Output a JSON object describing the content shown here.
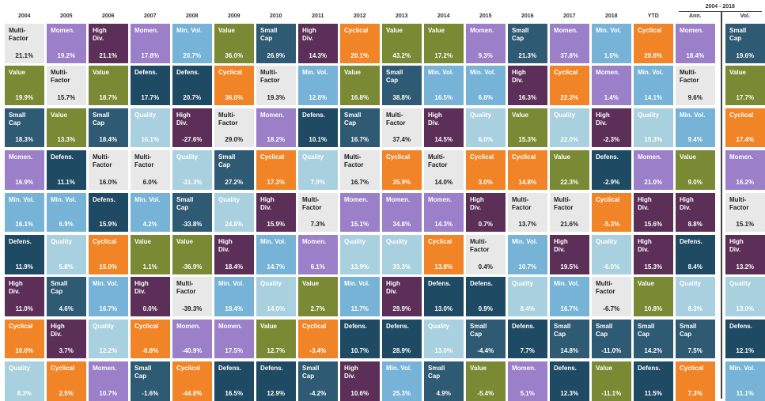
{
  "chart_data": {
    "type": "table",
    "years": [
      "2004",
      "2005",
      "2006",
      "2007",
      "2008",
      "2009",
      "2010",
      "2011",
      "2012",
      "2013",
      "2014",
      "2015",
      "2016",
      "2017",
      "2018",
      "YTD"
    ],
    "summary_title": "2004 - 2018",
    "summary_headers": [
      "Ann.",
      "Vol."
    ],
    "colors": {
      "Multi-Factor": "#e8e8e8",
      "Momen.": "#9b7fc9",
      "High Div.": "#5b2f57",
      "Min. Vol.": "#76b3d6",
      "Value": "#7a8a34",
      "Small Cap": "#2e5a73",
      "Cyclical": "#f08426",
      "Quality": "#a9d0de",
      "Defens.": "#1f4a63"
    },
    "text_colors": {
      "Multi-Factor": "#222222",
      "Quality": "#ffffff",
      "default": "#ffffff"
    },
    "rows": [
      [
        {
          "f": "Multi-Factor",
          "v": "21.1%"
        },
        {
          "f": "Momen.",
          "v": "19.2%"
        },
        {
          "f": "High Div.",
          "v": "21.1%"
        },
        {
          "f": "Momen.",
          "v": "17.8%"
        },
        {
          "f": "Min. Vol.",
          "v": "20.7%"
        },
        {
          "f": "Value",
          "v": "36.0%"
        },
        {
          "f": "Small Cap",
          "v": "26.9%"
        },
        {
          "f": "High Div.",
          "v": "14.3%"
        },
        {
          "f": "Cyclical",
          "v": "20.1%"
        },
        {
          "f": "Value",
          "v": "43.2%"
        },
        {
          "f": "Value",
          "v": "17.2%"
        },
        {
          "f": "Momen.",
          "v": "9.3%"
        },
        {
          "f": "Small Cap",
          "v": "21.3%"
        },
        {
          "f": "Momen.",
          "v": "37.8%"
        },
        {
          "f": "Min. Vol.",
          "v": "1.5%"
        },
        {
          "f": "Cyclical",
          "v": "20.6%"
        },
        {
          "f": "Momen.",
          "v": "18.4%"
        },
        {
          "f": "Small Cap",
          "v": "19.6%"
        }
      ],
      [
        {
          "f": "Value",
          "v": "19.9%"
        },
        {
          "f": "Multi-Factor",
          "v": "15.7%"
        },
        {
          "f": "Value",
          "v": "18.7%"
        },
        {
          "f": "Defens.",
          "v": "17.7%"
        },
        {
          "f": "Defens.",
          "v": "20.7%"
        },
        {
          "f": "Cyclical",
          "v": "36.0%"
        },
        {
          "f": "Multi-Factor",
          "v": "19.3%"
        },
        {
          "f": "Min. Vol.",
          "v": "12.8%"
        },
        {
          "f": "Value",
          "v": "16.8%"
        },
        {
          "f": "Small Cap",
          "v": "38.8%"
        },
        {
          "f": "Min. Vol.",
          "v": "16.5%"
        },
        {
          "f": "Min. Vol.",
          "v": "6.8%"
        },
        {
          "f": "High Div.",
          "v": "16.3%"
        },
        {
          "f": "Cyclical",
          "v": "22.3%"
        },
        {
          "f": "Momen.",
          "v": "1.4%"
        },
        {
          "f": "Min. Vol.",
          "v": "14.1%"
        },
        {
          "f": "Multi-Factor",
          "v": "9.6%"
        },
        {
          "f": "Value",
          "v": "17.7%"
        }
      ],
      [
        {
          "f": "Small Cap",
          "v": "18.3%"
        },
        {
          "f": "Value",
          "v": "13.3%"
        },
        {
          "f": "Small Cap",
          "v": "18.4%"
        },
        {
          "f": "Quality",
          "v": "16.1%"
        },
        {
          "f": "High Div.",
          "v": "-27.6%"
        },
        {
          "f": "Multi-Factor",
          "v": "29.0%"
        },
        {
          "f": "Momen.",
          "v": "18.2%"
        },
        {
          "f": "Defens.",
          "v": "10.1%"
        },
        {
          "f": "Small Cap",
          "v": "16.7%"
        },
        {
          "f": "Multi-Factor",
          "v": "37.4%"
        },
        {
          "f": "High Div.",
          "v": "14.5%"
        },
        {
          "f": "Quality",
          "v": "6.0%"
        },
        {
          "f": "Value",
          "v": "15.3%"
        },
        {
          "f": "Quality",
          "v": "22.0%"
        },
        {
          "f": "High Div.",
          "v": "-2.3%"
        },
        {
          "f": "Quality",
          "v": "15.3%"
        },
        {
          "f": "Min. Vol.",
          "v": "9.4%"
        },
        {
          "f": "Cyclical",
          "v": "17.4%"
        }
      ],
      [
        {
          "f": "Momen.",
          "v": "16.9%"
        },
        {
          "f": "Defens.",
          "v": "11.1%"
        },
        {
          "f": "Multi-Factor",
          "v": "16.0%"
        },
        {
          "f": "Multi-Factor",
          "v": "6.0%"
        },
        {
          "f": "Quality",
          "v": "-31.3%"
        },
        {
          "f": "Small Cap",
          "v": "27.2%"
        },
        {
          "f": "Cyclical",
          "v": "17.3%"
        },
        {
          "f": "Quality",
          "v": "7.9%"
        },
        {
          "f": "Multi-Factor",
          "v": "16.7%"
        },
        {
          "f": "Cyclical",
          "v": "35.9%"
        },
        {
          "f": "Multi-Factor",
          "v": "14.0%"
        },
        {
          "f": "Cyclical",
          "v": "3.0%"
        },
        {
          "f": "Cyclical",
          "v": "14.8%"
        },
        {
          "f": "Value",
          "v": "22.3%"
        },
        {
          "f": "Defens.",
          "v": "-2.9%"
        },
        {
          "f": "Momen.",
          "v": "21.0%"
        },
        {
          "f": "Value",
          "v": "9.0%"
        },
        {
          "f": "Momen.",
          "v": "16.2%"
        }
      ],
      [
        {
          "f": "Min. Vol.",
          "v": "16.1%"
        },
        {
          "f": "Min. Vol.",
          "v": "6.9%"
        },
        {
          "f": "Defens.",
          "v": "15.9%"
        },
        {
          "f": "Min. Vol.",
          "v": "4.2%"
        },
        {
          "f": "Small Cap",
          "v": "-33.8%"
        },
        {
          "f": "Quality",
          "v": "24.8%"
        },
        {
          "f": "High Div.",
          "v": "15.9%"
        },
        {
          "f": "Multi-Factor",
          "v": "7.3%"
        },
        {
          "f": "Momen.",
          "v": "15.1%"
        },
        {
          "f": "Momen.",
          "v": "34.8%"
        },
        {
          "f": "Momen.",
          "v": "14.3%"
        },
        {
          "f": "High Div.",
          "v": "0.7%"
        },
        {
          "f": "Multi-Factor",
          "v": "13.7%"
        },
        {
          "f": "Multi-Factor",
          "v": "21.6%"
        },
        {
          "f": "Cyclical",
          "v": "-5.3%"
        },
        {
          "f": "High Div.",
          "v": "15.6%"
        },
        {
          "f": "High Div.",
          "v": "8.8%"
        },
        {
          "f": "Multi-Factor",
          "v": "15.1%"
        }
      ],
      [
        {
          "f": "Defens.",
          "v": "11.9%"
        },
        {
          "f": "Quality",
          "v": "5.8%"
        },
        {
          "f": "Cyclical",
          "v": "15.0%"
        },
        {
          "f": "Value",
          "v": "1.1%"
        },
        {
          "f": "Value",
          "v": "-36.9%"
        },
        {
          "f": "High Div.",
          "v": "18.4%"
        },
        {
          "f": "Min. Vol.",
          "v": "14.7%"
        },
        {
          "f": "Momen.",
          "v": "6.1%"
        },
        {
          "f": "Quality",
          "v": "13.9%"
        },
        {
          "f": "Quality",
          "v": "33.3%"
        },
        {
          "f": "Cyclical",
          "v": "13.8%"
        },
        {
          "f": "Multi-Factor",
          "v": "0.4%"
        },
        {
          "f": "Min. Vol.",
          "v": "10.7%"
        },
        {
          "f": "High Div.",
          "v": "19.5%"
        },
        {
          "f": "Quality",
          "v": "-6.0%"
        },
        {
          "f": "High Div.",
          "v": "15.3%"
        },
        {
          "f": "Defens.",
          "v": "8.4%"
        },
        {
          "f": "High Div.",
          "v": "13.2%"
        }
      ],
      [
        {
          "f": "High Div.",
          "v": "11.0%"
        },
        {
          "f": "Small Cap",
          "v": "4.6%"
        },
        {
          "f": "Min. Vol.",
          "v": "16.7%"
        },
        {
          "f": "High Div.",
          "v": "0.0%"
        },
        {
          "f": "Multi-Factor",
          "v": "-39.3%"
        },
        {
          "f": "Min. Vol.",
          "v": "18.4%"
        },
        {
          "f": "Quality",
          "v": "14.0%"
        },
        {
          "f": "Value",
          "v": "2.7%"
        },
        {
          "f": "Min. Vol.",
          "v": "11.7%"
        },
        {
          "f": "High Div.",
          "v": "29.9%"
        },
        {
          "f": "Defens.",
          "v": "13.0%"
        },
        {
          "f": "Defens.",
          "v": "0.9%"
        },
        {
          "f": "Quality",
          "v": "8.4%"
        },
        {
          "f": "Min. Vol.",
          "v": "16.7%"
        },
        {
          "f": "Multi-Factor",
          "v": "-6.7%"
        },
        {
          "f": "Value",
          "v": "10.8%"
        },
        {
          "f": "Quality",
          "v": "8.3%"
        },
        {
          "f": "Quality",
          "v": "13.0%"
        }
      ],
      [
        {
          "f": "Cyclical",
          "v": "10.0%"
        },
        {
          "f": "High Div.",
          "v": "3.7%"
        },
        {
          "f": "Quality",
          "v": "12.2%"
        },
        {
          "f": "Cyclical",
          "v": "-0.8%"
        },
        {
          "f": "Momen.",
          "v": "-40.9%"
        },
        {
          "f": "Momen.",
          "v": "17.5%"
        },
        {
          "f": "Value",
          "v": "12.7%"
        },
        {
          "f": "Cyclical",
          "v": "-3.4%"
        },
        {
          "f": "Defens.",
          "v": "10.7%"
        },
        {
          "f": "Defens.",
          "v": "28.9%"
        },
        {
          "f": "Quality",
          "v": "13.0%"
        },
        {
          "f": "Small Cap",
          "v": "-4.4%"
        },
        {
          "f": "Defens.",
          "v": "7.7%"
        },
        {
          "f": "Small Cap",
          "v": "14.8%"
        },
        {
          "f": "Small Cap",
          "v": "-11.0%"
        },
        {
          "f": "Small Cap",
          "v": "14.2%"
        },
        {
          "f": "Small Cap",
          "v": "7.5%"
        },
        {
          "f": "Defens.",
          "v": "12.1%"
        }
      ],
      [
        {
          "f": "Quality",
          "v": "8.3%"
        },
        {
          "f": "Cyclical",
          "v": "2.5%"
        },
        {
          "f": "Momen.",
          "v": "10.7%"
        },
        {
          "f": "Small Cap",
          "v": "-1.6%"
        },
        {
          "f": "Cyclical",
          "v": "-44.8%"
        },
        {
          "f": "Defens.",
          "v": "16.5%"
        },
        {
          "f": "Defens.",
          "v": "12.9%"
        },
        {
          "f": "Small Cap",
          "v": "-4.2%"
        },
        {
          "f": "High Div.",
          "v": "10.6%"
        },
        {
          "f": "Min. Vol.",
          "v": "25.3%"
        },
        {
          "f": "Small Cap",
          "v": "4.9%"
        },
        {
          "f": "Value",
          "v": "-5.4%"
        },
        {
          "f": "Momen.",
          "v": "5.1%"
        },
        {
          "f": "Defens.",
          "v": "12.3%"
        },
        {
          "f": "Value",
          "v": "-11.1%"
        },
        {
          "f": "Defens.",
          "v": "11.5%"
        },
        {
          "f": "Cyclical",
          "v": "7.3%"
        },
        {
          "f": "Min. Vol.",
          "v": "11.1%"
        }
      ]
    ]
  }
}
